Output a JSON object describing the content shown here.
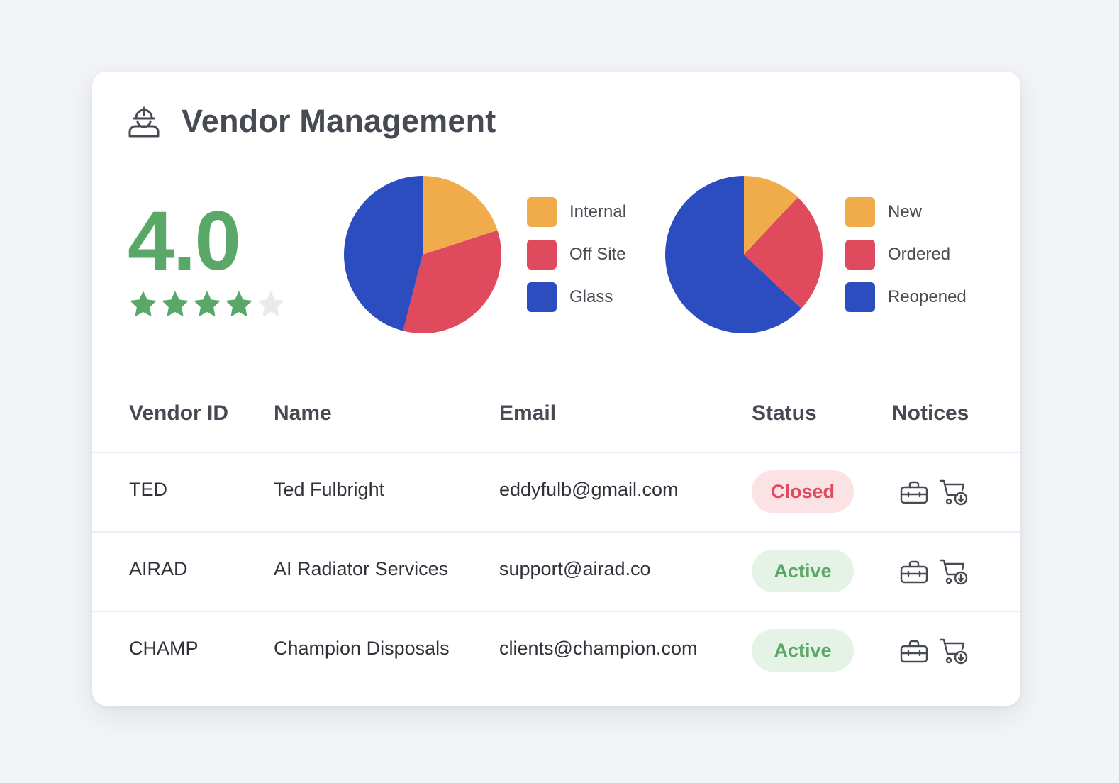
{
  "header": {
    "title": "Vendor Management",
    "icon": "worker-helmet-icon"
  },
  "rating": {
    "value": "4.0",
    "stars_filled": 4,
    "stars_total": 5,
    "color": "#5aa867"
  },
  "colors": {
    "orange": "#f0ab4b",
    "red": "#e04a5d",
    "blue": "#2c4dbf",
    "green": "#5aa867",
    "star_empty": "#e8eaee"
  },
  "chart_data": [
    {
      "type": "pie",
      "slices": [
        {
          "label": "Internal",
          "value": 20,
          "color": "#f0ab4b"
        },
        {
          "label": "Off Site",
          "value": 34,
          "color": "#e04a5d"
        },
        {
          "label": "Glass",
          "value": 46,
          "color": "#2c4dbf"
        }
      ],
      "legend_position": "right"
    },
    {
      "type": "pie",
      "slices": [
        {
          "label": "New",
          "value": 12,
          "color": "#f0ab4b"
        },
        {
          "label": "Ordered",
          "value": 25,
          "color": "#e04a5d"
        },
        {
          "label": "Reopened",
          "value": 63,
          "color": "#2c4dbf"
        }
      ],
      "legend_position": "right"
    }
  ],
  "table": {
    "columns": [
      "Vendor ID",
      "Name",
      "Email",
      "Status",
      "Notices"
    ],
    "rows": [
      {
        "id": "TED",
        "name": "Ted Fulbright",
        "email": "eddyfulb@gmail.com",
        "status": "Closed",
        "status_type": "closed",
        "notices": [
          "toolbox-icon",
          "cart-download-icon"
        ]
      },
      {
        "id": "AIRAD",
        "name": "AI Radiator Services",
        "email": "support@airad.co",
        "status": "Active",
        "status_type": "active",
        "notices": [
          "toolbox-icon",
          "cart-download-icon"
        ]
      },
      {
        "id": "CHAMP",
        "name": "Champion Disposals",
        "email": "clients@champion.com",
        "status": "Active",
        "status_type": "active",
        "notices": [
          "toolbox-icon",
          "cart-download-icon"
        ]
      }
    ]
  }
}
